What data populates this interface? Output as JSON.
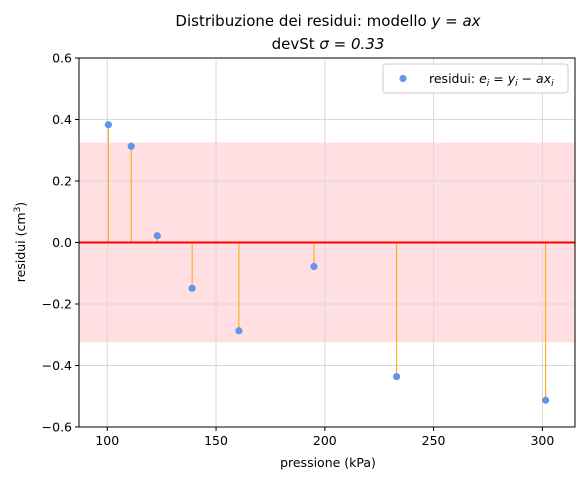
{
  "chart_data": {
    "type": "scatter",
    "title_line1_prefix": "Distribuzione dei residui: modello ",
    "title_line1_math": "y = ax",
    "title_line2_prefix": "devSt ",
    "title_line2_math": "σ = 0.33",
    "xlabel": "pressione (kPa)",
    "ylabel_prefix": "residui (cm",
    "ylabel_sup": "3",
    "ylabel_suffix": ")",
    "xlim": [
      87,
      315
    ],
    "ylim": [
      -0.6,
      0.6
    ],
    "xticks": [
      100,
      150,
      200,
      250,
      300
    ],
    "yticks": [
      -0.6,
      -0.4,
      -0.2,
      0.0,
      0.2,
      0.4,
      0.6
    ],
    "ytick_labels": [
      "−0.6",
      "−0.4",
      "−0.2",
      "0.0",
      "0.2",
      "0.4",
      "0.6"
    ],
    "grid": true,
    "sigma_band": 0.325,
    "zero_line": 0,
    "legend_position": "top-right",
    "legend_label": "residui: e_i = y_i − ax_i",
    "series": [
      {
        "name": "residui",
        "x": [
          100.5,
          111,
          123,
          139,
          160.5,
          195,
          233,
          301.5
        ],
        "y": [
          0.383,
          0.313,
          0.022,
          -0.149,
          -0.287,
          -0.078,
          -0.436,
          -0.513
        ]
      }
    ],
    "colors": {
      "points": "#6495ed",
      "stems": "#ffa500",
      "zero_line": "#ff0000",
      "band": "#ffdfe2",
      "grid": "#d9d9d9"
    }
  }
}
